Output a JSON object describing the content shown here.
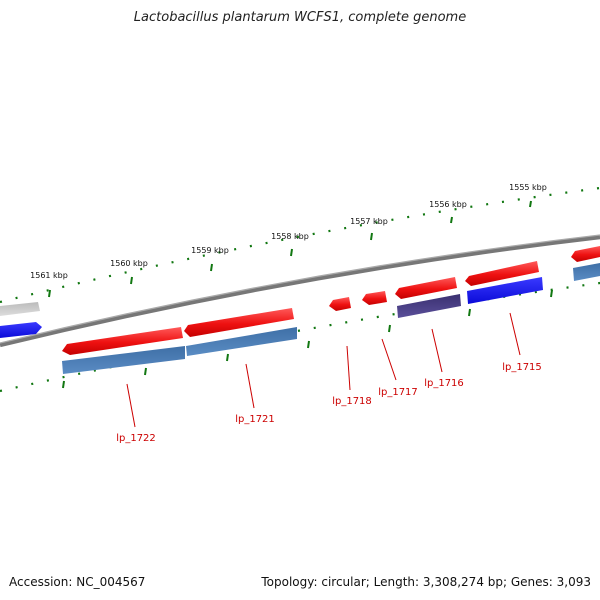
{
  "title": "Lactobacillus plantarum WCFS1, complete genome",
  "footer": {
    "accession": "Accession: NC_004567",
    "summary": "Topology: circular; Length: 3,308,274 bp; Genes: 3,093"
  },
  "ticks": [
    {
      "label": "1555 kbp"
    },
    {
      "label": "1556 kbp"
    },
    {
      "label": "1557 kbp"
    },
    {
      "label": "1558 kbp"
    },
    {
      "label": "1559 kbp"
    },
    {
      "label": "1560 kbp"
    },
    {
      "label": "1561 kbp"
    }
  ],
  "genes": [
    {
      "label": "lp_1715"
    },
    {
      "label": "lp_1716"
    },
    {
      "label": "lp_1717"
    },
    {
      "label": "lp_1718"
    },
    {
      "label": "lp_1721"
    },
    {
      "label": "lp_1722"
    }
  ],
  "colors": {
    "cds": "#ee1111",
    "cds_light": "#ff6f6f",
    "blue": "#1212ee",
    "steel": "#4477aa",
    "purple": "#453b80",
    "grey": "#aaaaaa",
    "backbone": "#777777",
    "tick": "#117711",
    "label": "#cc0000"
  }
}
